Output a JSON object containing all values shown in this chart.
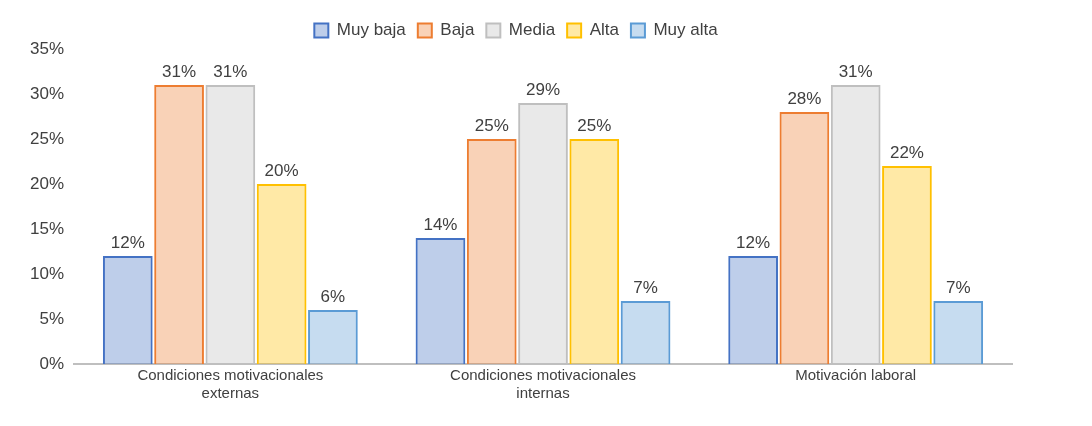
{
  "chart_data": {
    "type": "bar",
    "categories": [
      "Condiciones motivacionales externas",
      "Condiciones motivacionales internas",
      "Motivación laboral"
    ],
    "series": [
      {
        "name": "Muy baja",
        "color": "#4472c4",
        "values": [
          12,
          14,
          12
        ],
        "value_labels": [
          "12%",
          "14%",
          "12%"
        ]
      },
      {
        "name": "Baja",
        "color": "#ed7d31",
        "values": [
          31,
          25,
          28
        ],
        "value_labels": [
          "31%",
          "25%",
          "28%"
        ]
      },
      {
        "name": "Media",
        "color": "#bfbfbf",
        "values": [
          31,
          29,
          31
        ],
        "value_labels": [
          "31%",
          "29%",
          "31%"
        ]
      },
      {
        "name": "Alta",
        "color": "#ffc000",
        "values": [
          20,
          25,
          22
        ],
        "value_labels": [
          "20%",
          "25%",
          "22%"
        ]
      },
      {
        "name": "Muy alta",
        "color": "#5b9bd5",
        "values": [
          6,
          7,
          7
        ],
        "value_labels": [
          "6%",
          "7%",
          "7%"
        ]
      }
    ],
    "ylim": [
      0,
      35
    ],
    "yticks": [
      {
        "value": 0,
        "label": "0%"
      },
      {
        "value": 5,
        "label": "5%"
      },
      {
        "value": 10,
        "label": "10%"
      },
      {
        "value": 15,
        "label": "15%"
      },
      {
        "value": 20,
        "label": "20%"
      },
      {
        "value": 25,
        "label": "25%"
      },
      {
        "value": 30,
        "label": "30%"
      },
      {
        "value": 35,
        "label": "35%"
      }
    ],
    "grid": false,
    "legend": "top"
  }
}
